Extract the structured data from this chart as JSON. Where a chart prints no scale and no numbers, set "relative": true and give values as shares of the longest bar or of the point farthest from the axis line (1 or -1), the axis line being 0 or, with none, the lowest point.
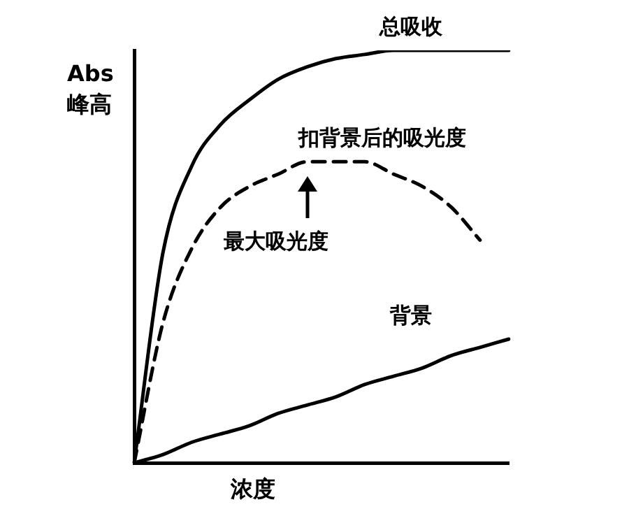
{
  "chart_data": {
    "type": "line",
    "relative": true,
    "xlabel": "浓度",
    "ylabel": "Abs 峰高",
    "categories": [
      null,
      null,
      null,
      null,
      null,
      null,
      null,
      null,
      null,
      null,
      null,
      null,
      null,
      null
    ],
    "marker": "none",
    "legend": false,
    "grid": false,
    "line_style": "solid",
    "annotations": [
      "最大吸光度"
    ],
    "series": [
      {
        "name": "总吸收",
        "color": "#000000",
        "values": [
          0,
          0.51,
          0.72,
          0.82,
          0.88,
          0.93,
          0.96,
          0.98,
          0.99,
          1,
          1,
          1,
          1,
          1
        ]
      },
      {
        "name": "扣背景后的吸光度",
        "color": "#000000",
        "line_style": "dashed",
        "values": [
          0,
          0.34,
          0.52,
          0.62,
          0.67,
          0.7,
          0.73,
          0.73,
          0.73,
          0.7,
          0.67,
          0.62,
          0.54,
          null
        ]
      },
      {
        "name": "背景",
        "color": "#000000",
        "values": [
          0,
          0.02,
          0.05,
          0.07,
          0.09,
          0.12,
          0.14,
          0.16,
          0.19,
          0.21,
          0.23,
          0.26,
          0.28,
          0.3
        ]
      }
    ]
  }
}
